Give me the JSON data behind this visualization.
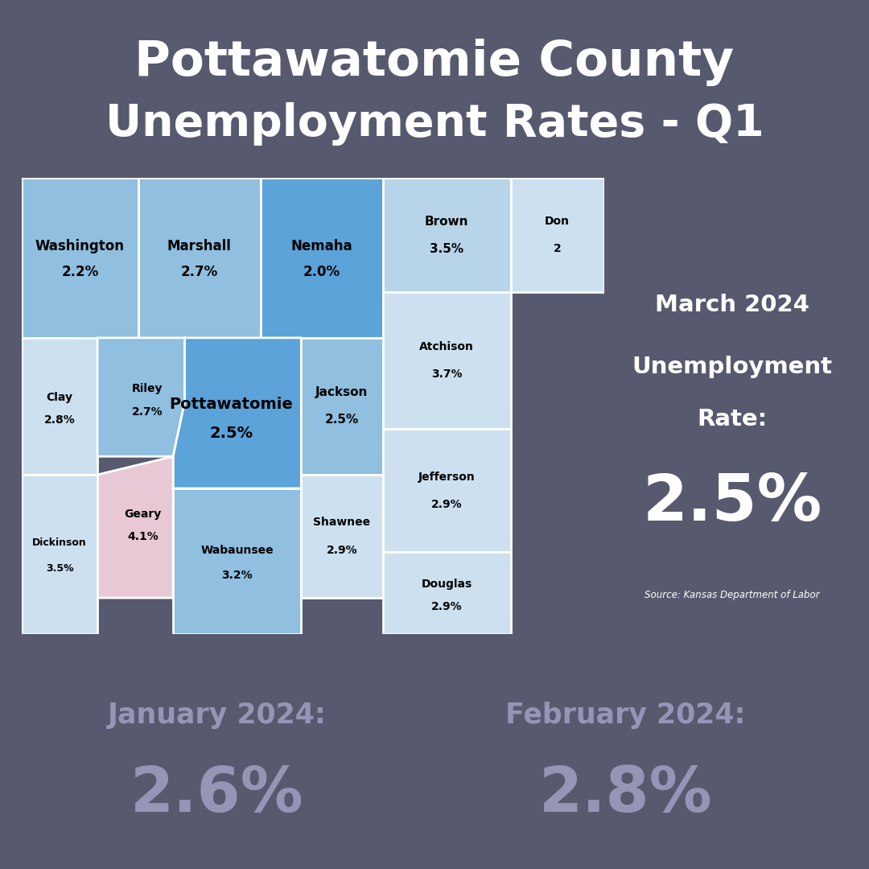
{
  "title_line1": "Pottawatomie County",
  "title_line2": "Unemployment Rates - Q1",
  "title_bg_color": "#575a6e",
  "map_outer_bg": "#e8edf5",
  "map_inner_bg": "#dde6f0",
  "bottom_bg_color": "#575a6e",
  "march_box_color": "#7ab8e8",
  "march_label": "March 2024\nUnemployment\nRate:",
  "march_value": "2.5%",
  "source_text": "Source: Kansas Department of Labor",
  "jan_label": "January 2024:",
  "jan_value": "2.6%",
  "feb_label": "February 2024:",
  "feb_value": "2.8%",
  "colors": {
    "dark_blue": "#5ba3d9",
    "mid_blue": "#90bfdf",
    "light_blue": "#b8d4e8",
    "lightest_blue": "#cce0f0",
    "very_light": "#ddeaf5",
    "pink": "#e8c8d4"
  }
}
